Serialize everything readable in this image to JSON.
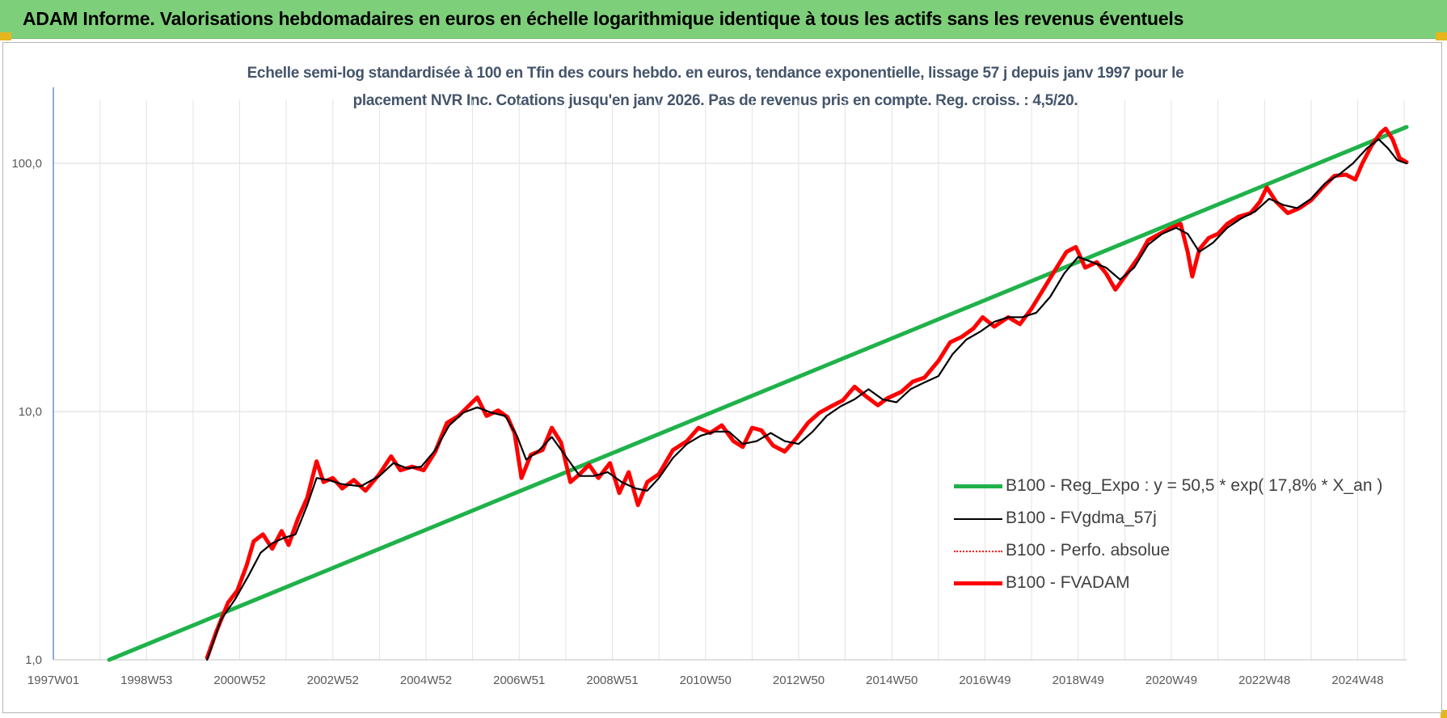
{
  "header": {
    "title": "ADAM Informe. Valorisations hebdomadaires en euros en échelle logarithmique identique à tous les actifs sans les revenus éventuels"
  },
  "chart_data": {
    "type": "line",
    "title_lines": [
      "Echelle semi-log standardisée à 100 en Tfin des cours hebdo. en euros, tendance exponentielle, lissage 57 j depuis janv 1997 pour le",
      "placement NVR Inc. Cotations jusqu'en janv 2026. Pas de revenus pris en compte. Reg. croiss. : 4,5/20."
    ],
    "y_scale": "log",
    "ylim": [
      1,
      180
    ],
    "y_ticks": [
      {
        "value": 1,
        "label": "1,0"
      },
      {
        "value": 10,
        "label": "10,0"
      },
      {
        "value": 100,
        "label": "100,0"
      }
    ],
    "xlim": [
      1997.0,
      2026.05
    ],
    "x_ticks": [
      {
        "value": 1997.0,
        "label": "1997W01"
      },
      {
        "value": 1999.0,
        "label": "1998W53"
      },
      {
        "value": 2001.0,
        "label": "2000W52"
      },
      {
        "value": 2003.0,
        "label": "2002W52"
      },
      {
        "value": 2005.0,
        "label": "2004W52"
      },
      {
        "value": 2007.0,
        "label": "2006W51"
      },
      {
        "value": 2009.0,
        "label": "2008W51"
      },
      {
        "value": 2011.0,
        "label": "2010W50"
      },
      {
        "value": 2013.0,
        "label": "2012W50"
      },
      {
        "value": 2015.0,
        "label": "2014W50"
      },
      {
        "value": 2017.0,
        "label": "2016W49"
      },
      {
        "value": 2019.0,
        "label": "2018W49"
      },
      {
        "value": 2021.0,
        "label": "2020W49"
      },
      {
        "value": 2023.0,
        "label": "2022W48"
      },
      {
        "value": 2025.0,
        "label": "2024W48"
      }
    ],
    "grid": true,
    "legend_position": "bottom-right",
    "series": [
      {
        "name": "B100 - Reg_Expo : y = 50,5 * exp( 17,8% *  X_an )",
        "color": "#1fb24a",
        "style": "solid-thick",
        "points": [
          [
            1998.2,
            1.0
          ],
          [
            2026.05,
            140
          ]
        ]
      },
      {
        "name": "B100 - FVgdma_57j",
        "color": "#000000",
        "style": "solid-thin",
        "points": [
          [
            2000.3,
            1.0
          ],
          [
            2000.6,
            1.45
          ],
          [
            2000.9,
            1.75
          ],
          [
            2001.2,
            2.2
          ],
          [
            2001.45,
            2.7
          ],
          [
            2001.7,
            2.95
          ],
          [
            2001.95,
            3.1
          ],
          [
            2002.2,
            3.2
          ],
          [
            2002.45,
            4.2
          ],
          [
            2002.65,
            5.4
          ],
          [
            2002.9,
            5.3
          ],
          [
            2003.2,
            5.1
          ],
          [
            2003.6,
            5.0
          ],
          [
            2004.0,
            5.5
          ],
          [
            2004.3,
            6.2
          ],
          [
            2004.6,
            5.9
          ],
          [
            2004.9,
            6.0
          ],
          [
            2005.2,
            7.0
          ],
          [
            2005.5,
            8.8
          ],
          [
            2005.8,
            9.9
          ],
          [
            2006.1,
            10.4
          ],
          [
            2006.4,
            9.9
          ],
          [
            2006.7,
            9.6
          ],
          [
            2006.95,
            8.0
          ],
          [
            2007.15,
            6.4
          ],
          [
            2007.4,
            6.9
          ],
          [
            2007.7,
            7.9
          ],
          [
            2008.0,
            6.6
          ],
          [
            2008.3,
            5.5
          ],
          [
            2008.6,
            5.5
          ],
          [
            2008.9,
            5.7
          ],
          [
            2009.2,
            5.2
          ],
          [
            2009.5,
            4.9
          ],
          [
            2009.75,
            4.8
          ],
          [
            2010.0,
            5.4
          ],
          [
            2010.3,
            6.5
          ],
          [
            2010.6,
            7.4
          ],
          [
            2010.9,
            8.0
          ],
          [
            2011.2,
            8.3
          ],
          [
            2011.5,
            8.3
          ],
          [
            2011.8,
            7.4
          ],
          [
            2012.1,
            7.6
          ],
          [
            2012.4,
            8.2
          ],
          [
            2012.7,
            7.6
          ],
          [
            2013.0,
            7.4
          ],
          [
            2013.3,
            8.3
          ],
          [
            2013.6,
            9.6
          ],
          [
            2013.9,
            10.5
          ],
          [
            2014.2,
            11.2
          ],
          [
            2014.5,
            12.3
          ],
          [
            2014.8,
            11.2
          ],
          [
            2015.1,
            10.9
          ],
          [
            2015.4,
            12.3
          ],
          [
            2015.7,
            13.1
          ],
          [
            2016.0,
            13.9
          ],
          [
            2016.3,
            17.0
          ],
          [
            2016.6,
            19.5
          ],
          [
            2016.9,
            21.0
          ],
          [
            2017.2,
            23.0
          ],
          [
            2017.5,
            24.0
          ],
          [
            2017.8,
            24.0
          ],
          [
            2018.1,
            25.0
          ],
          [
            2018.4,
            29.0
          ],
          [
            2018.7,
            36.0
          ],
          [
            2019.0,
            42.0
          ],
          [
            2019.3,
            40.0
          ],
          [
            2019.6,
            38.0
          ],
          [
            2019.9,
            34.0
          ],
          [
            2020.2,
            38.0
          ],
          [
            2020.5,
            47.0
          ],
          [
            2020.8,
            52.0
          ],
          [
            2021.1,
            55.0
          ],
          [
            2021.35,
            52.0
          ],
          [
            2021.6,
            44.0
          ],
          [
            2021.9,
            48.0
          ],
          [
            2022.2,
            55.0
          ],
          [
            2022.5,
            60.0
          ],
          [
            2022.8,
            64.0
          ],
          [
            2023.1,
            72.0
          ],
          [
            2023.4,
            68.0
          ],
          [
            2023.7,
            66.0
          ],
          [
            2024.0,
            72.0
          ],
          [
            2024.3,
            83.0
          ],
          [
            2024.6,
            90.0
          ],
          [
            2024.9,
            100.0
          ],
          [
            2025.2,
            115.0
          ],
          [
            2025.45,
            125.0
          ],
          [
            2025.65,
            115.0
          ],
          [
            2025.85,
            103.0
          ],
          [
            2026.05,
            100.0
          ]
        ]
      },
      {
        "name": "B100 - Perfo. absolue",
        "color": "#ff0000",
        "style": "dotted",
        "points": []
      },
      {
        "name": "B100 - FVADAM",
        "color": "#ff0000",
        "style": "solid-thick",
        "points": [
          [
            2000.3,
            1.02
          ],
          [
            2000.5,
            1.3
          ],
          [
            2000.75,
            1.7
          ],
          [
            2000.95,
            1.9
          ],
          [
            2001.15,
            2.4
          ],
          [
            2001.3,
            3.0
          ],
          [
            2001.5,
            3.2
          ],
          [
            2001.7,
            2.8
          ],
          [
            2001.9,
            3.3
          ],
          [
            2002.05,
            2.9
          ],
          [
            2002.25,
            3.7
          ],
          [
            2002.45,
            4.5
          ],
          [
            2002.65,
            6.3
          ],
          [
            2002.8,
            5.2
          ],
          [
            2003.0,
            5.4
          ],
          [
            2003.2,
            4.9
          ],
          [
            2003.45,
            5.3
          ],
          [
            2003.7,
            4.8
          ],
          [
            2004.0,
            5.6
          ],
          [
            2004.25,
            6.6
          ],
          [
            2004.45,
            5.8
          ],
          [
            2004.7,
            6.0
          ],
          [
            2004.95,
            5.8
          ],
          [
            2005.2,
            6.9
          ],
          [
            2005.45,
            9.0
          ],
          [
            2005.7,
            9.6
          ],
          [
            2005.95,
            10.7
          ],
          [
            2006.1,
            11.4
          ],
          [
            2006.3,
            9.6
          ],
          [
            2006.55,
            10.1
          ],
          [
            2006.75,
            9.5
          ],
          [
            2006.9,
            8.2
          ],
          [
            2007.05,
            5.4
          ],
          [
            2007.25,
            6.7
          ],
          [
            2007.5,
            7.0
          ],
          [
            2007.7,
            8.6
          ],
          [
            2007.9,
            7.5
          ],
          [
            2008.1,
            5.2
          ],
          [
            2008.3,
            5.6
          ],
          [
            2008.5,
            6.1
          ],
          [
            2008.7,
            5.4
          ],
          [
            2008.95,
            6.2
          ],
          [
            2009.15,
            4.7
          ],
          [
            2009.35,
            5.7
          ],
          [
            2009.55,
            4.2
          ],
          [
            2009.75,
            5.2
          ],
          [
            2010.0,
            5.6
          ],
          [
            2010.3,
            7.0
          ],
          [
            2010.6,
            7.6
          ],
          [
            2010.85,
            8.6
          ],
          [
            2011.1,
            8.2
          ],
          [
            2011.35,
            8.8
          ],
          [
            2011.6,
            7.6
          ],
          [
            2011.8,
            7.2
          ],
          [
            2012.0,
            8.6
          ],
          [
            2012.2,
            8.4
          ],
          [
            2012.45,
            7.3
          ],
          [
            2012.7,
            6.9
          ],
          [
            2012.95,
            7.8
          ],
          [
            2013.2,
            9.0
          ],
          [
            2013.45,
            9.9
          ],
          [
            2013.7,
            10.5
          ],
          [
            2013.95,
            11.1
          ],
          [
            2014.2,
            12.6
          ],
          [
            2014.45,
            11.5
          ],
          [
            2014.7,
            10.6
          ],
          [
            2014.9,
            11.3
          ],
          [
            2015.2,
            12.0
          ],
          [
            2015.45,
            13.2
          ],
          [
            2015.7,
            13.7
          ],
          [
            2016.0,
            16.0
          ],
          [
            2016.25,
            19.0
          ],
          [
            2016.5,
            20.0
          ],
          [
            2016.75,
            21.6
          ],
          [
            2016.95,
            24.0
          ],
          [
            2017.2,
            22.0
          ],
          [
            2017.5,
            24.0
          ],
          [
            2017.75,
            22.5
          ],
          [
            2018.0,
            26.0
          ],
          [
            2018.25,
            31.0
          ],
          [
            2018.5,
            37.0
          ],
          [
            2018.75,
            44.0
          ],
          [
            2018.95,
            46.0
          ],
          [
            2019.15,
            38.0
          ],
          [
            2019.4,
            40.0
          ],
          [
            2019.6,
            36.0
          ],
          [
            2019.8,
            31.0
          ],
          [
            2020.05,
            36.0
          ],
          [
            2020.3,
            42.0
          ],
          [
            2020.5,
            49.0
          ],
          [
            2020.75,
            52.0
          ],
          [
            2021.0,
            55.0
          ],
          [
            2021.2,
            57.0
          ],
          [
            2021.35,
            44.0
          ],
          [
            2021.45,
            35.0
          ],
          [
            2021.6,
            45.0
          ],
          [
            2021.8,
            50.0
          ],
          [
            2022.0,
            52.0
          ],
          [
            2022.2,
            57.0
          ],
          [
            2022.45,
            61.0
          ],
          [
            2022.7,
            63.0
          ],
          [
            2022.9,
            70.0
          ],
          [
            2023.05,
            80.0
          ],
          [
            2023.25,
            70.0
          ],
          [
            2023.5,
            63.0
          ],
          [
            2023.75,
            66.0
          ],
          [
            2024.0,
            71.0
          ],
          [
            2024.25,
            80.0
          ],
          [
            2024.5,
            89.0
          ],
          [
            2024.75,
            90.0
          ],
          [
            2024.95,
            86.0
          ],
          [
            2025.1,
            100.0
          ],
          [
            2025.3,
            118.0
          ],
          [
            2025.5,
            133.0
          ],
          [
            2025.6,
            138.0
          ],
          [
            2025.75,
            125.0
          ],
          [
            2025.9,
            105.0
          ],
          [
            2026.05,
            101.0
          ]
        ]
      }
    ]
  }
}
